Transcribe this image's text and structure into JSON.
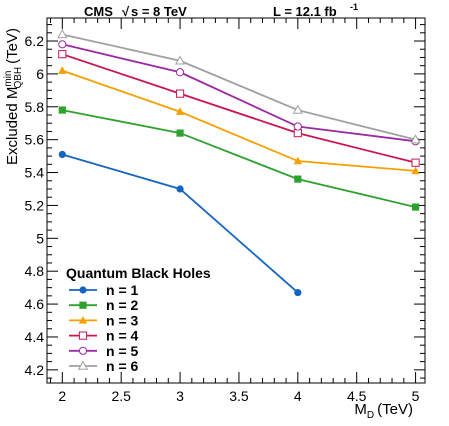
{
  "chart_data": {
    "type": "line",
    "header": {
      "experiment": "CMS",
      "energy_prefix": "s = 8 TeV",
      "luminosity_prefix": "L = 12.1 fb",
      "luminosity_exp": "-1"
    },
    "xlabel": {
      "main": "M",
      "sub": "D",
      "unit": "(TeV)"
    },
    "ylabel": {
      "main": "Excluded M",
      "sup": "min",
      "sub": "QBH",
      "unit": "(TeV)"
    },
    "xlim": [
      1.87,
      5.08
    ],
    "ylim": [
      4.12,
      6.34
    ],
    "x_ticks": [
      2,
      2.5,
      3,
      3.5,
      4,
      4.5,
      5
    ],
    "x_tick_labels": [
      "2",
      "2.5",
      "3",
      "3.5",
      "4",
      "4.5",
      "5"
    ],
    "y_ticks": [
      4.2,
      4.4,
      4.6,
      4.8,
      5,
      5.2,
      5.4,
      5.6,
      5.8,
      6,
      6.2
    ],
    "y_tick_labels": [
      "4.2",
      "4.4",
      "4.6",
      "4.8",
      "5",
      "5.2",
      "5.4",
      "5.6",
      "5.8",
      "6",
      "6.2"
    ],
    "legend": {
      "title": "Quantum Black Holes",
      "placement": "bottom-left"
    },
    "series": [
      {
        "name": "n = 1",
        "color": "#1565c0",
        "marker": "circle-filled",
        "x": [
          2,
          3,
          4
        ],
        "y": [
          5.51,
          5.3,
          4.67
        ]
      },
      {
        "name": "n = 2",
        "color": "#2ea12e",
        "marker": "square-filled",
        "x": [
          2,
          3,
          4,
          5
        ],
        "y": [
          5.78,
          5.64,
          5.36,
          5.19
        ]
      },
      {
        "name": "n = 3",
        "color": "#f5a000",
        "marker": "triangle-filled",
        "x": [
          2,
          3,
          4,
          5
        ],
        "y": [
          6.02,
          5.77,
          5.47,
          5.41
        ]
      },
      {
        "name": "n = 4",
        "color": "#c8174f",
        "marker": "square-open",
        "x": [
          2,
          3,
          4,
          5
        ],
        "y": [
          6.12,
          5.88,
          5.64,
          5.46
        ]
      },
      {
        "name": "n = 5",
        "color": "#9a2aa3",
        "marker": "circle-open",
        "x": [
          2,
          3,
          4,
          5
        ],
        "y": [
          6.18,
          6.01,
          5.68,
          5.59
        ]
      },
      {
        "name": "n = 6",
        "color": "#a0a0a0",
        "marker": "triangle-open",
        "x": [
          2,
          3,
          4,
          5
        ],
        "y": [
          6.24,
          6.08,
          5.78,
          5.6
        ]
      }
    ]
  }
}
